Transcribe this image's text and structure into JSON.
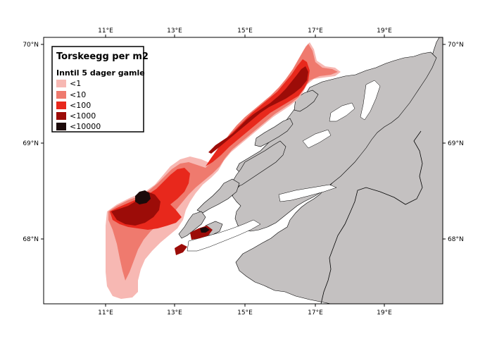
{
  "legend": {
    "title": "Torskeegg per m2",
    "subtitle": "Inntil 5 dager gamle",
    "classes": [
      {
        "label": "<1",
        "color": "#f7b8b3"
      },
      {
        "label": "<10",
        "color": "#ef7a6e"
      },
      {
        "label": "<100",
        "color": "#e8281c"
      },
      {
        "label": "<1000",
        "color": "#9c0c08"
      },
      {
        "label": "<10000",
        "color": "#1c0a0a"
      }
    ]
  },
  "axes": {
    "top_lon_labels": [
      "11°E",
      "13°E",
      "15°E",
      "17°E",
      "19°E"
    ],
    "bottom_lon_labels": [
      "11°E",
      "13°E",
      "15°E",
      "17°E",
      "19°E"
    ],
    "left_lat_labels": [
      "70°N",
      "69°N",
      "68°N"
    ],
    "right_lat_labels": [
      "70°N",
      "69°N",
      "68°N"
    ]
  },
  "colors": {
    "land": "#c4c1c1",
    "sea": "#ffffff",
    "frame": "#000000"
  }
}
